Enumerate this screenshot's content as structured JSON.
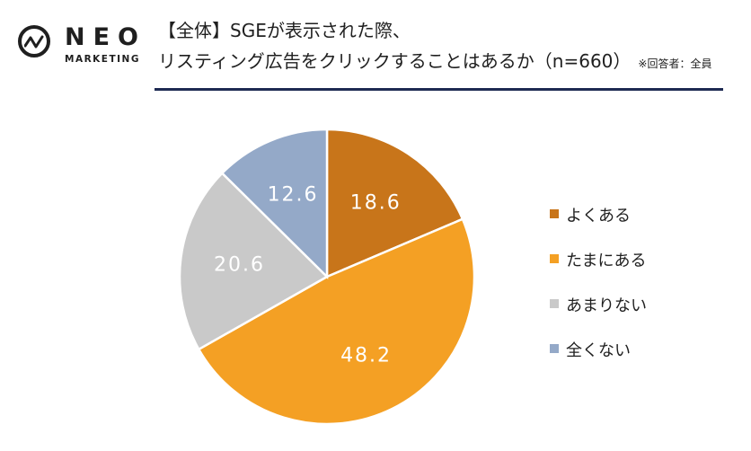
{
  "logo": {
    "name": "NEO",
    "sub": "MARKETING"
  },
  "header": {
    "title_line1": "【全体】SGEが表示された際、",
    "title_line2": "リスティング広告をクリックすることはあるか（n=660）",
    "note": "※回答者：全員"
  },
  "colors": {
    "rule": "#1e2a52",
    "series": [
      "#c8751a",
      "#f4a024",
      "#c9c9c9",
      "#94a9c8"
    ]
  },
  "chart_data": {
    "type": "pie",
    "n": 660,
    "legend_position": "right",
    "categories": [
      "よくある",
      "たまにある",
      "あまりない",
      "全くない"
    ],
    "values": [
      18.6,
      48.2,
      20.6,
      12.6
    ],
    "labels": [
      "18.6",
      "48.2",
      "20.6",
      "12.6"
    ],
    "colors": [
      "#c8751a",
      "#f4a024",
      "#c9c9c9",
      "#94a9c8"
    ]
  }
}
